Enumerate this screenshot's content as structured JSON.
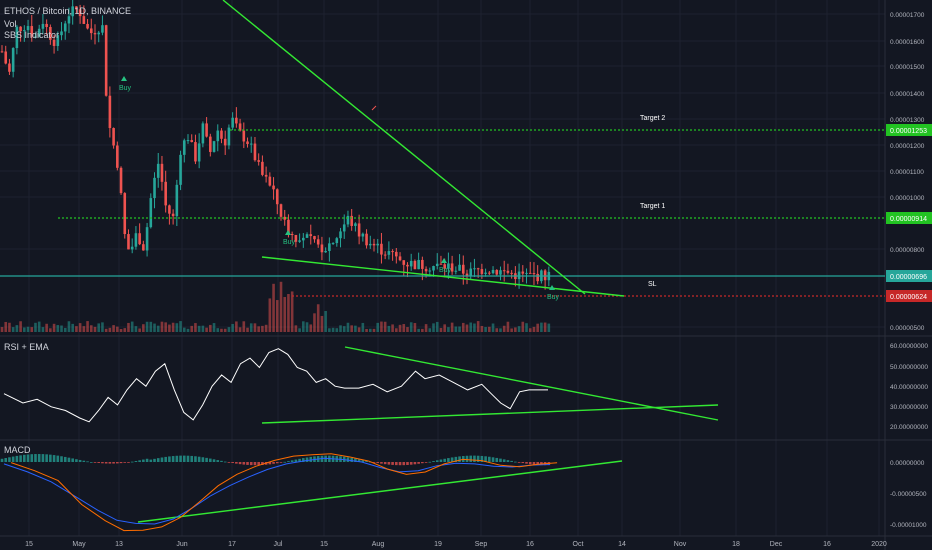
{
  "header": {
    "symbol_title": "ETHOS / Bitcoin, 1D, BINANCE",
    "indicator_1": "Vol",
    "indicator_2": "SBS Indicator"
  },
  "colors": {
    "background": "#131722",
    "grid": "#1e2230",
    "candle_up": "#26a69a",
    "candle_down": "#ef5350",
    "trendline": "#33e833",
    "target_line": "#22c322",
    "stop_line": "#c62828",
    "current_price_line": "#26a69a",
    "axis_text": "#b2b5be",
    "rsi_line": "#ffffff",
    "macd_line": "#2962ff",
    "signal_line": "#ff6d00"
  },
  "chart_data": [
    {
      "type": "candlestick",
      "name": "price",
      "ylim": [
        4.7e-06,
        1.76e-05
      ],
      "y_ticks": [
        "0.00001700",
        "0.00001600",
        "0.00001500",
        "0.00001400",
        "0.00001300",
        "0.00001200",
        "0.00001100",
        "0.00001000",
        "0.00000800",
        "0.00000500"
      ],
      "x_ticks": [
        "15",
        "May",
        "13",
        "Jun",
        "17",
        "Jul",
        "15",
        "Aug",
        "19",
        "Sep",
        "16",
        "Oct",
        "14",
        "Nov",
        "18",
        "Dec",
        "16",
        "2020"
      ],
      "levels": [
        {
          "label": "Target 2",
          "value": "0.00001253",
          "price": 1.253e-05
        },
        {
          "label": "Target 1",
          "value": "0.00000914",
          "price": 9.14e-06
        },
        {
          "label": "SL",
          "value": "0.00000624",
          "price": 6.24e-06
        },
        {
          "label": "",
          "value": "0.00000696",
          "price": 6.96e-06
        }
      ],
      "buy_signals": [
        {
          "label": "Buy",
          "date_index": 4
        },
        {
          "label": "Buy",
          "date_index": 20
        },
        {
          "label": "Buy",
          "date_index": 39
        },
        {
          "label": "Buy",
          "date_index": 47
        }
      ]
    },
    {
      "type": "line",
      "name": "RSI + EMA",
      "ylim": [
        15,
        62
      ],
      "y_ticks": [
        "60.00000000",
        "50.00000000",
        "40.00000000",
        "30.00000000",
        "20.00000000"
      ]
    },
    {
      "type": "histogram",
      "name": "MACD",
      "ylim": [
        -1.1e-06,
        4e-07
      ],
      "y_ticks": [
        "0.00000000",
        "-0.00000500",
        "-0.00001000"
      ]
    }
  ]
}
